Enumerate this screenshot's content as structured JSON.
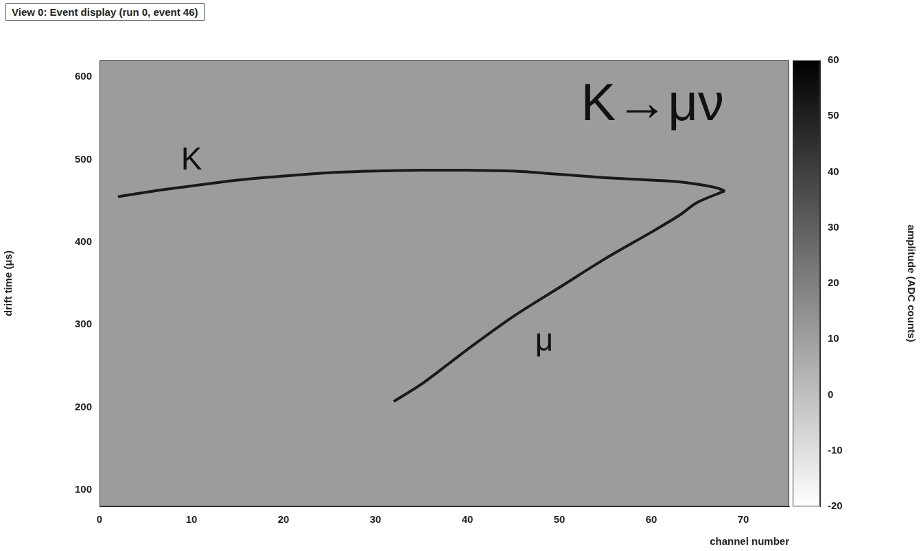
{
  "chart_data": {
    "type": "line",
    "title": "View 0: Event display (run 0, event 46)",
    "annotation": "K→μν",
    "x_label": "channel number",
    "y_label": "drift time (μs)",
    "xlim": [
      0,
      75
    ],
    "xticks": [
      0,
      10,
      20,
      30,
      40,
      50,
      60,
      70
    ],
    "ylim": [
      80,
      620
    ],
    "yticks": [
      100,
      200,
      300,
      400,
      500,
      600
    ],
    "grid": false,
    "series": [
      {
        "name": "K",
        "color": "#1a1a1a",
        "x": [
          2,
          6,
          10,
          15,
          20,
          25,
          30,
          35,
          40,
          45,
          50,
          55,
          60,
          63,
          65,
          67,
          68
        ],
        "values": [
          455,
          462,
          468,
          475,
          480,
          484,
          486,
          487,
          487,
          486,
          482,
          478,
          475,
          473,
          470,
          466,
          462
        ]
      },
      {
        "name": "μ",
        "color": "#1a1a1a",
        "x": [
          32,
          35,
          38,
          40,
          45,
          50,
          55,
          60,
          63,
          65,
          68
        ],
        "values": [
          207,
          228,
          253,
          270,
          310,
          345,
          380,
          412,
          432,
          448,
          462
        ]
      }
    ],
    "colorbar": {
      "label": "amplitude (ADC counts)",
      "range": [
        -20,
        60
      ],
      "ticks": [
        -20,
        -10,
        0,
        10,
        20,
        30,
        40,
        50,
        60
      ]
    }
  }
}
